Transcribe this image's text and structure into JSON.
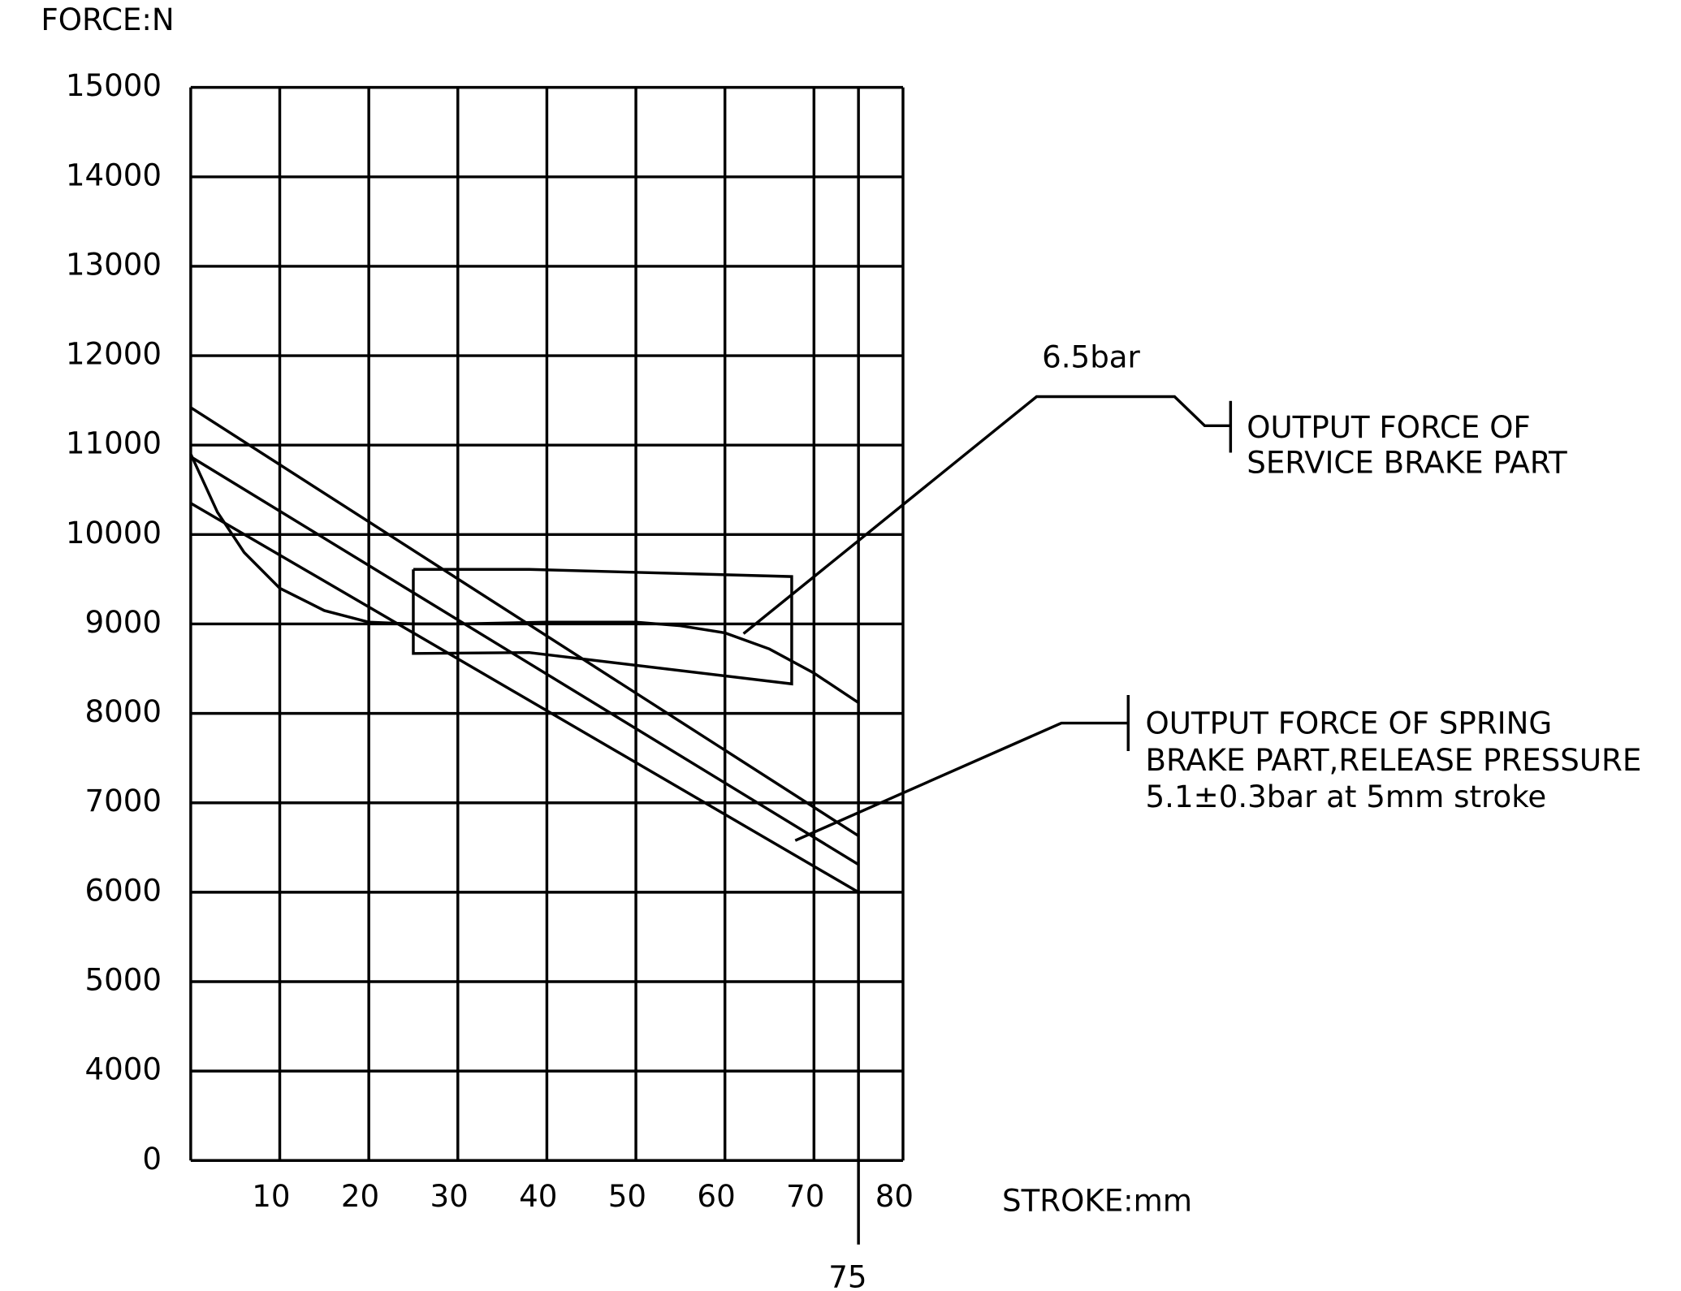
{
  "chart_data": {
    "type": "line",
    "y_label": "FORCE:N",
    "x_label": "STROKE:mm",
    "xlim": [
      0,
      80
    ],
    "xticks": [
      10,
      20,
      30,
      40,
      50,
      60,
      70,
      80
    ],
    "x_marker": 75,
    "ylim": [
      0,
      15000
    ],
    "yticks": [
      0,
      4000,
      5000,
      6000,
      7000,
      8000,
      9000,
      10000,
      11000,
      12000,
      13000,
      14000,
      15000
    ],
    "y_axis_break": true,
    "grid": true,
    "series": [
      {
        "color": "#000000",
        "x": [
          0,
          3,
          6,
          10,
          15,
          20,
          25,
          30,
          40,
          50,
          55,
          60,
          65,
          70,
          75
        ],
        "values": [
          10900,
          10250,
          9800,
          9400,
          9150,
          9020,
          9000,
          9000,
          9020,
          9020,
          8980,
          8900,
          8720,
          8450,
          8120
        ]
      },
      {
        "color": "#000000",
        "x": [
          25,
          38,
          67.5,
          67.5,
          38,
          25,
          25
        ],
        "values": [
          9610,
          9610,
          9530,
          8330,
          8680,
          8670,
          9610
        ]
      },
      {
        "color": "#000000",
        "x": [
          0,
          75
        ],
        "values": [
          11420,
          6630
        ]
      },
      {
        "color": "#000000",
        "x": [
          0,
          75
        ],
        "values": [
          10870,
          6310
        ]
      },
      {
        "color": "#000000",
        "x": [
          0,
          75
        ],
        "values": [
          10350,
          6000
        ]
      }
    ],
    "annotations": {
      "service_pressure": "6.5bar",
      "service_brake": [
        "OUTPUT FORCE OF",
        "SERVICE BRAKE PART"
      ],
      "spring_brake": [
        "OUTPUT FORCE OF SPRING",
        "BRAKE PART,RELEASE PRESSURE",
        "5.1±0.3bar at 5mm stroke"
      ]
    }
  }
}
